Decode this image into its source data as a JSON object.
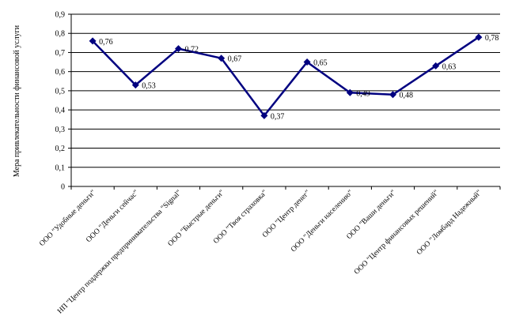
{
  "chart_data": {
    "type": "line",
    "ylabel": "Мера привлекательности финансовой услуги",
    "ylim": [
      0,
      0.9
    ],
    "y_ticks": [
      "0",
      "0,1",
      "0,2",
      "0,3",
      "0,4",
      "0,5",
      "0,6",
      "0,7",
      "0,8",
      "0,9"
    ],
    "grid": true,
    "categories": [
      "ООО \"Удобные деньги\"",
      "ООО \"Деньги сейчас\"",
      "НП \"Центр поддержки предпринимательства \"Signal\"",
      "ООО \"Быстрые деньги\"",
      "ООО \"Твоя страховка\"",
      "ООО \"Центр денег\"",
      "ООО \"Деньги населению\"",
      "ООО \"Ваши деньги\"",
      "ООО \"Центр финансовых решений\"",
      "ООО \"Ломбард Надежный\""
    ],
    "series": [
      {
        "values": [
          0.76,
          0.53,
          0.72,
          0.67,
          0.37,
          0.65,
          0.49,
          0.48,
          0.63,
          0.78
        ],
        "labels": [
          "0,76",
          "0,53",
          "0,72",
          "0,67",
          "0,37",
          "0,65",
          "0,49",
          "0,48",
          "0,63",
          "0,78"
        ],
        "color": "#000080"
      }
    ]
  }
}
